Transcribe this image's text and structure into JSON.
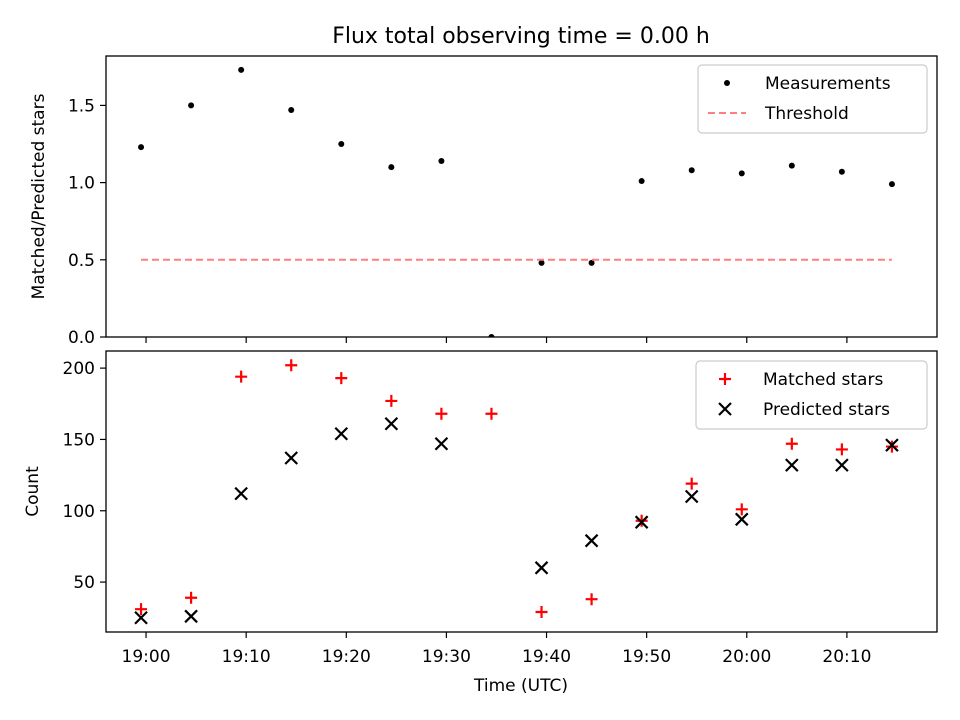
{
  "figure": {
    "title": "Flux total observing time = 0.00 h",
    "xlabel": "Time (UTC)"
  },
  "chart_data": [
    {
      "type": "scatter",
      "panel": "top",
      "ylabel": "Matched/Predicted stars",
      "ylim": [
        0,
        1.82
      ],
      "yticks": [
        0.0,
        0.5,
        1.0,
        1.5
      ],
      "ytick_labels": [
        "0.0",
        "0.5",
        "1.0",
        "1.5"
      ],
      "legend_position": "top-right",
      "series": [
        {
          "name": "Measurements",
          "style": "dot",
          "color": "#000000",
          "x": [
            "18:59:30",
            "19:04:30",
            "19:09:30",
            "19:14:30",
            "19:19:30",
            "19:24:30",
            "19:29:30",
            "19:34:30",
            "19:39:30",
            "19:44:30",
            "19:49:30",
            "19:54:30",
            "19:59:30",
            "20:04:30",
            "20:09:30",
            "20:14:30"
          ],
          "y": [
            1.23,
            1.5,
            1.73,
            1.47,
            1.25,
            1.1,
            1.14,
            0.0,
            0.48,
            0.48,
            1.01,
            1.08,
            1.06,
            1.11,
            1.07,
            0.99
          ]
        },
        {
          "name": "Threshold",
          "style": "dashed-line",
          "color": "#ff7f7f",
          "x": [
            "18:59:30",
            "20:14:30"
          ],
          "y": [
            0.5,
            0.5
          ]
        }
      ]
    },
    {
      "type": "scatter",
      "panel": "bottom",
      "ylabel": "Count",
      "ylim": [
        15,
        212
      ],
      "yticks": [
        50,
        100,
        150,
        200
      ],
      "ytick_labels": [
        "50",
        "100",
        "150",
        "200"
      ],
      "legend_position": "top-right",
      "series": [
        {
          "name": "Matched stars",
          "marker": "plus",
          "color": "#ff0000",
          "x": [
            "18:59:30",
            "19:04:30",
            "19:09:30",
            "19:14:30",
            "19:19:30",
            "19:24:30",
            "19:29:30",
            "19:34:30",
            "19:39:30",
            "19:44:30",
            "19:49:30",
            "19:54:30",
            "19:59:30",
            "20:04:30",
            "20:09:30",
            "20:14:30"
          ],
          "y": [
            31,
            39,
            194,
            202,
            193,
            177,
            168,
            168,
            29,
            38,
            93,
            119,
            101,
            147,
            143,
            145
          ]
        },
        {
          "name": "Predicted stars",
          "marker": "x",
          "color": "#000000",
          "x": [
            "18:59:30",
            "19:04:30",
            "19:09:30",
            "19:14:30",
            "19:19:30",
            "19:24:30",
            "19:29:30",
            "19:39:30",
            "19:44:30",
            "19:49:30",
            "19:54:30",
            "19:59:30",
            "20:04:30",
            "20:09:30",
            "20:14:30"
          ],
          "y": [
            25,
            26,
            112,
            137,
            154,
            161,
            147,
            60,
            79,
            92,
            110,
            94,
            132,
            132,
            146
          ]
        }
      ]
    }
  ],
  "x_axis": {
    "xlim": [
      "18:56:00",
      "20:19:00"
    ],
    "ticks": [
      "19:00",
      "19:10",
      "19:20",
      "19:30",
      "19:40",
      "19:50",
      "20:00",
      "20:10"
    ]
  }
}
